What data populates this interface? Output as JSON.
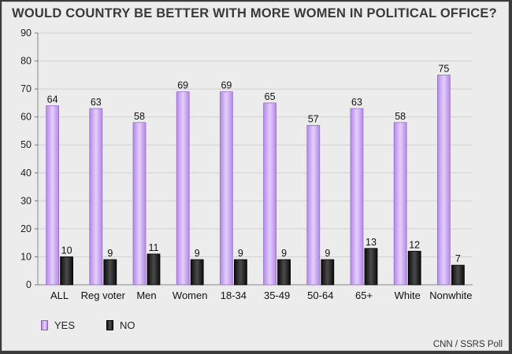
{
  "chart_data": {
    "type": "bar",
    "title": "WOULD COUNTRY BE BETTER WITH MORE WOMEN IN POLITICAL OFFICE?",
    "categories": [
      "ALL",
      "Reg voter",
      "Men",
      "Women",
      "18-34",
      "35-49",
      "50-64",
      "65+",
      "White",
      "Nonwhite"
    ],
    "series": [
      {
        "name": "YES",
        "values": [
          64,
          63,
          58,
          69,
          69,
          65,
          57,
          63,
          58,
          75
        ],
        "color": "#c9a5f2"
      },
      {
        "name": "NO",
        "values": [
          10,
          9,
          11,
          9,
          9,
          9,
          9,
          13,
          12,
          7
        ],
        "color": "#1a1a1a"
      }
    ],
    "ylim": [
      0,
      90
    ],
    "yticks": [
      0,
      10,
      20,
      30,
      40,
      50,
      60,
      70,
      80,
      90
    ],
    "grid": true,
    "legend_placement": "bottom-left",
    "source": "CNN / SSRS Poll"
  }
}
